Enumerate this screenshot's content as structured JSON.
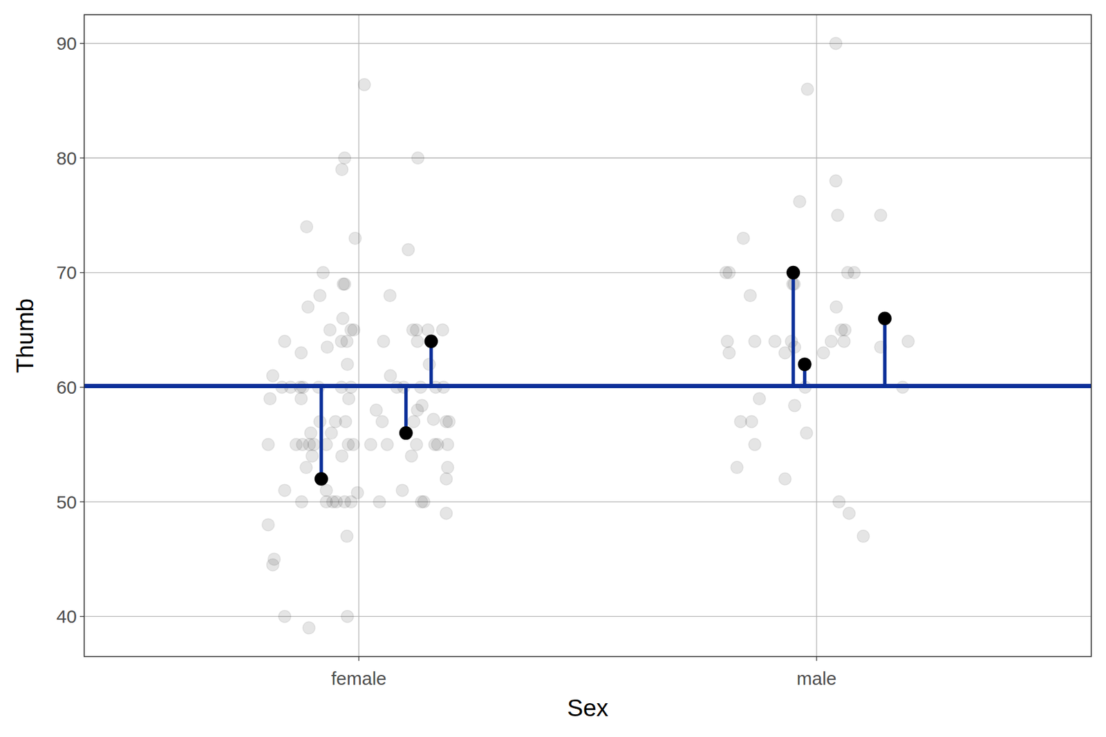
{
  "chart_data": {
    "type": "scatter",
    "x_label": "Sex",
    "y_label": "Thumb",
    "xlim": [
      0.4,
      2.6
    ],
    "xticks": [
      {
        "value": 1,
        "label": "female"
      },
      {
        "value": 2,
        "label": "male"
      }
    ],
    "ylim": [
      36.5,
      92.5
    ],
    "yticks": [
      40,
      50,
      60,
      70,
      80,
      90
    ],
    "grid": true,
    "reference_line": {
      "value": 60.1,
      "color": "#0b2f99"
    },
    "series": [
      {
        "color": "#000000",
        "marker": "circle",
        "x": [
          1.012,
          0.969,
          1.129,
          0.963,
          0.886,
          0.992,
          1.108,
          0.922,
          0.966,
          0.969,
          0.915,
          1.068,
          0.889,
          0.965,
          0.937,
          0.983,
          0.989,
          1.118,
          1.126,
          1.151,
          1.183,
          0.838,
          0.962,
          0.974,
          1.054,
          1.128,
          0.874,
          0.931,
          0.975,
          1.154,
          0.812,
          1.069,
          0.832,
          0.851,
          0.872,
          0.878,
          0.912,
          0.962,
          0.983,
          1.083,
          1.098,
          1.135,
          1.168,
          1.185,
          1.138,
          1.038,
          1.128,
          0.806,
          0.874,
          0.978,
          0.895,
          0.94,
          0.915,
          0.949,
          0.971,
          1.051,
          1.12,
          1.163,
          1.191,
          1.197,
          0.802,
          0.863,
          0.877,
          0.892,
          0.902,
          0.929,
          0.977,
          0.988,
          1.026,
          1.062,
          1.126,
          1.166,
          1.172,
          1.194,
          0.898,
          0.963,
          1.115,
          0.885,
          1.194,
          0.929,
          1.095,
          0.838,
          0.997,
          1.191,
          0.875,
          0.929,
          0.943,
          0.951,
          0.969,
          0.983,
          1.045,
          1.137,
          1.142,
          1.191,
          0.802,
          0.974,
          0.815,
          0.812,
          0.838,
          0.975,
          0.891,
          2.042,
          1.98,
          1.963,
          2.042,
          2.046,
          2.14,
          1.84,
          1.802,
          1.809,
          2.068,
          2.082,
          1.948,
          1.951,
          1.855,
          2.043,
          2.054,
          2.062,
          1.805,
          1.865,
          1.909,
          1.945,
          2.032,
          2.06,
          2.2,
          1.809,
          1.931,
          2.015,
          1.952,
          2.14,
          1.975,
          2.188,
          1.875,
          1.952,
          1.834,
          1.858,
          1.978,
          1.865,
          1.826,
          1.931,
          2.049,
          2.071,
          2.102
        ],
        "values": [
          86.4,
          80,
          80,
          79,
          74,
          73,
          72,
          70,
          69,
          69,
          68,
          68,
          67,
          66,
          65,
          65,
          65,
          65,
          65,
          65,
          65,
          64,
          64,
          64,
          64,
          64,
          63,
          63.5,
          62,
          62,
          61,
          61,
          60,
          60,
          60,
          60,
          60,
          60,
          60,
          60,
          60,
          60,
          60,
          60,
          58.4,
          58,
          58,
          59,
          59,
          59,
          56,
          56,
          57,
          57,
          57,
          57,
          57,
          57.2,
          57,
          57,
          55,
          55,
          55,
          55,
          55,
          55,
          55,
          55,
          55,
          55,
          55,
          55,
          55,
          55,
          54,
          54,
          54,
          53,
          53,
          51,
          51,
          51,
          50.8,
          52,
          50,
          50,
          50,
          50,
          50,
          50,
          50,
          50,
          50,
          49,
          48,
          47,
          45,
          44.5,
          40,
          40,
          39,
          90,
          86,
          76.2,
          78,
          75,
          75,
          73,
          70,
          70,
          70,
          70,
          69,
          69,
          68,
          67,
          65,
          65,
          64,
          64,
          64,
          64,
          64,
          64,
          64,
          63,
          63,
          63,
          63.5,
          63.5,
          60,
          60,
          59,
          58.4,
          57,
          57,
          56,
          55,
          53,
          52,
          50,
          49,
          47
        ]
      },
      {
        "color": "#000000",
        "marker": "circle",
        "x": [
          0.918,
          1.103,
          1.158,
          1.949,
          1.974,
          2.149
        ],
        "values": [
          52,
          56,
          64,
          70,
          62,
          66
        ]
      }
    ]
  }
}
